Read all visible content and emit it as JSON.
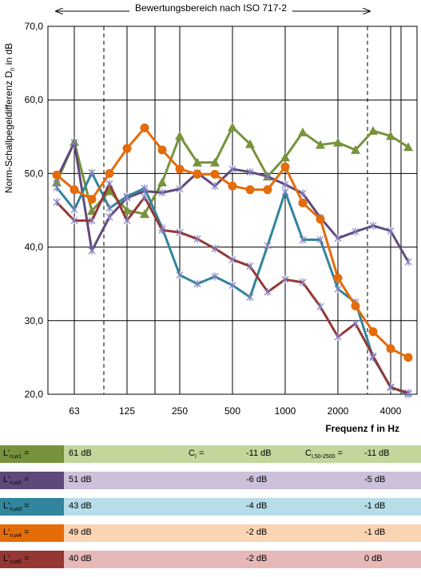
{
  "chart_data": {
    "type": "line",
    "title": "",
    "range_label": "Bewertungsbereich nach ISO 717-2",
    "xlabel": "Frequenz f in Hz",
    "ylabel": "Norm-Schallpegeldifferenz D",
    "ylabel_sub": "n",
    "ylabel_suffix": " in dB",
    "ylim": [
      20,
      70
    ],
    "yticks": [
      "20,0",
      "30,0",
      "40,0",
      "50,0",
      "60,0",
      "70,0"
    ],
    "x_tick_labels": [
      "63",
      "125",
      "250",
      "500",
      "1000",
      "2000",
      "4000"
    ],
    "x": [
      50,
      63,
      80,
      100,
      125,
      160,
      200,
      250,
      315,
      400,
      500,
      630,
      800,
      1000,
      1250,
      1600,
      2000,
      2500,
      3150,
      4000,
      5000
    ],
    "grid": true,
    "series": [
      {
        "color": "#77933c",
        "marker": "triangle",
        "values": [
          48.8,
          54.3,
          44.9,
          47.6,
          45.0,
          44.5,
          48.8,
          55.1,
          51.5,
          51.5,
          56.3,
          54.0,
          49.6,
          52.2,
          55.6,
          53.9,
          54.2,
          53.2,
          55.8,
          55.1,
          53.6
        ]
      },
      {
        "color": "#604a7b",
        "marker": "cross",
        "values": [
          49.3,
          54.2,
          39.5,
          44.1,
          46.7,
          47.6,
          47.4,
          47.9,
          50.1,
          48.3,
          50.6,
          50.2,
          49.6,
          48.5,
          47.3,
          44.0,
          41.2,
          42.1,
          42.9,
          42.2,
          38.0
        ]
      },
      {
        "color": "#31859c",
        "marker": "cross",
        "values": [
          48.1,
          45.1,
          50.1,
          45.3,
          46.9,
          48.0,
          42.6,
          36.2,
          35.0,
          36.0,
          34.8,
          33.2,
          40.2,
          47.5,
          41.0,
          41.0,
          34.3,
          32.5,
          25.0,
          21.0,
          20.0
        ]
      },
      {
        "color": "#e46c0a",
        "marker": "circle",
        "values": [
          49.8,
          47.8,
          46.5,
          50.0,
          53.4,
          56.2,
          53.2,
          50.6,
          49.9,
          49.9,
          48.3,
          47.8,
          47.8,
          50.9,
          46.0,
          43.8,
          35.8,
          32.0,
          28.5,
          26.2,
          25.0
        ]
      },
      {
        "color": "#953735",
        "marker": "cross",
        "values": [
          46.1,
          43.6,
          43.6,
          48.6,
          43.6,
          46.8,
          42.3,
          42.0,
          41.1,
          39.8,
          38.3,
          37.4,
          33.9,
          35.6,
          35.2,
          31.9,
          27.8,
          29.6,
          25.2,
          20.9,
          20.2
        ]
      }
    ]
  },
  "legend": {
    "ci_label": "C",
    "ci_sub": "I",
    "ci_suffix": " =",
    "ci5_label": "C",
    "ci5_sub": "I,50-2500",
    "ci5_suffix": " =",
    "rows": [
      {
        "label": "L'",
        "sub": "n,w1",
        "suffix": " =",
        "value": "61 dB",
        "ci": "-11 dB",
        "ci5": "-11 dB",
        "swatch": "#76923c",
        "band": "#c3d69b"
      },
      {
        "label": "L'",
        "sub": "n,w2",
        "suffix": " =",
        "value": "51 dB",
        "ci": "-6 dB",
        "ci5": "-5 dB",
        "swatch": "#5f497a",
        "band": "#ccc0da"
      },
      {
        "label": "L'",
        "sub": "n,w3",
        "suffix": " =",
        "value": "43 dB",
        "ci": "-4 dB",
        "ci5": "-1 dB",
        "swatch": "#31859c",
        "band": "#b7dde8"
      },
      {
        "label": "L'",
        "sub": "n,w4",
        "suffix": " =",
        "value": "49 dB",
        "ci": "-2 dB",
        "ci5": "-1 dB",
        "swatch": "#e36c09",
        "band": "#fbd4b4"
      },
      {
        "label": "L'",
        "sub": "n,w5",
        "suffix": " =",
        "value": "40 dB",
        "ci": "-2 dB",
        "ci5": "0 dB",
        "swatch": "#953734",
        "band": "#e6b9b8"
      }
    ]
  }
}
